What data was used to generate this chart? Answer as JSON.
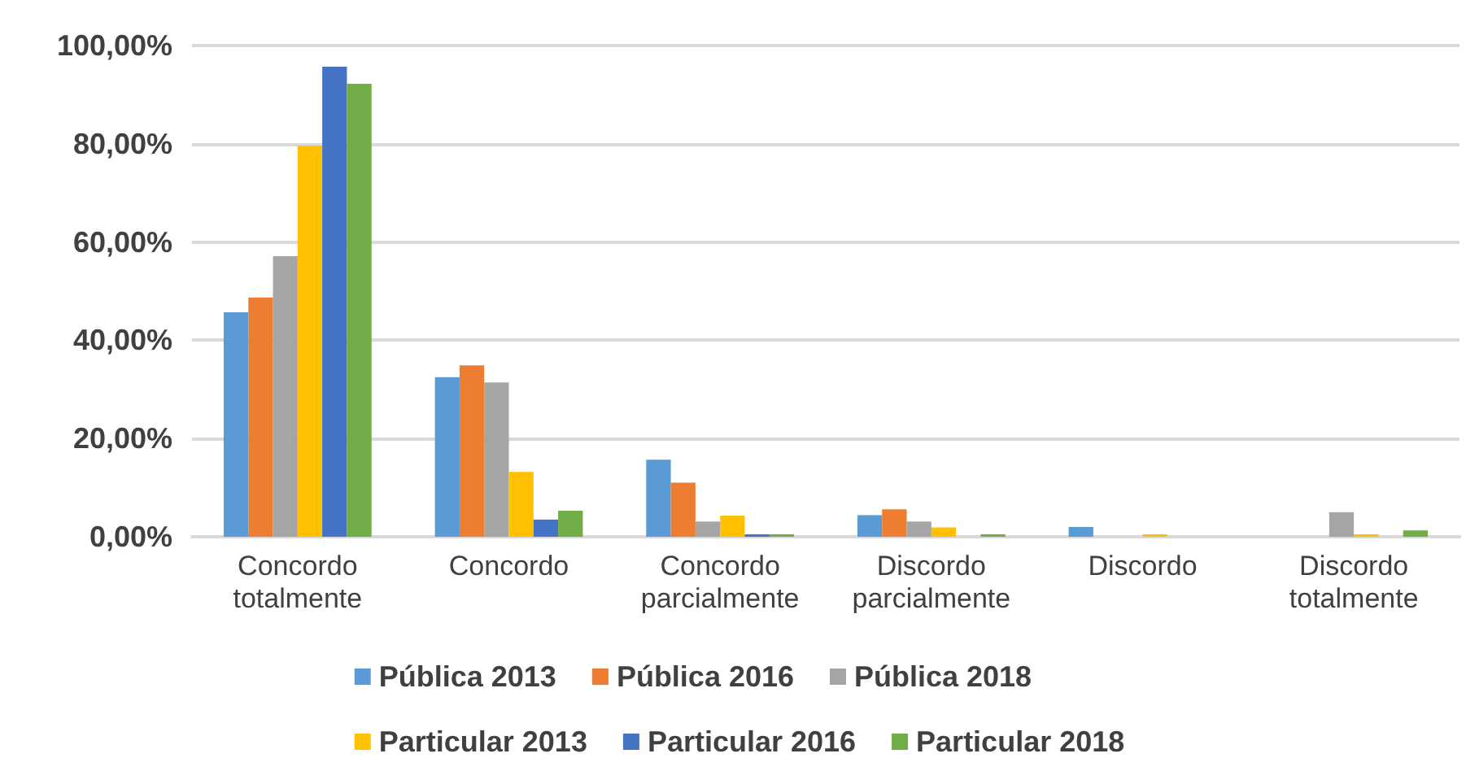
{
  "chart_data": {
    "type": "bar",
    "categories": [
      "Concordo\ntotalmente",
      "Concordo",
      "Concordo\nparcialmente",
      "Discordo\nparcialmente",
      "Discordo",
      "Discordo\ntotalmente"
    ],
    "series": [
      {
        "name": "Pública 2013",
        "color": "#5b9bd5",
        "values": [
          45.7,
          32.5,
          15.7,
          4.4,
          2.0,
          0
        ]
      },
      {
        "name": "Pública 2016",
        "color": "#ed7d31",
        "values": [
          48.7,
          34.9,
          11.0,
          5.6,
          0,
          0
        ]
      },
      {
        "name": "Pública 2018",
        "color": "#a5a5a5",
        "values": [
          57.1,
          31.4,
          3.1,
          3.1,
          0,
          5.0
        ]
      },
      {
        "name": "Particular 2013",
        "color": "#ffc000",
        "values": [
          79.6,
          13.2,
          4.3,
          1.9,
          0.5,
          0.5
        ]
      },
      {
        "name": "Particular 2016",
        "color": "#4472c4",
        "values": [
          95.7,
          3.5,
          0.5,
          0,
          0,
          0
        ]
      },
      {
        "name": "Particular 2018",
        "color": "#70ad47",
        "values": [
          92.2,
          5.3,
          0.5,
          0.5,
          0,
          1.3
        ]
      }
    ],
    "ylim": [
      0,
      100
    ],
    "yticks": [
      {
        "value": 0,
        "label": "0,00%"
      },
      {
        "value": 20,
        "label": "20,00%"
      },
      {
        "value": 40,
        "label": "40,00%"
      },
      {
        "value": 60,
        "label": "60,00%"
      },
      {
        "value": 80,
        "label": "80,00%"
      },
      {
        "value": 100,
        "label": "100,00%"
      }
    ],
    "grid": "y",
    "legend": "bottom"
  }
}
